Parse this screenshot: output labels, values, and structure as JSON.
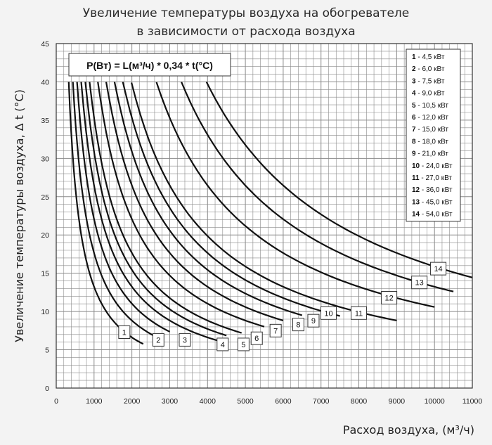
{
  "chart_data": {
    "type": "line",
    "title_lines": [
      "Увеличение температуры воздуха на обогревателе",
      "в зависимости от расхода воздуха"
    ],
    "xlabel": "Расход воздуха, (м³/ч)",
    "ylabel": "Увеличение температуры воздуха, Δ t (°C)",
    "xlim": [
      0,
      11000
    ],
    "ylim": [
      0,
      45
    ],
    "x_ticks": [
      0,
      1000,
      2000,
      3000,
      4000,
      5000,
      6000,
      7000,
      8000,
      9000,
      10000,
      11000
    ],
    "y_ticks": [
      0,
      5,
      10,
      15,
      20,
      25,
      30,
      35,
      40,
      45
    ],
    "grid": true,
    "formula": "P(Вт) = L(м³/ч) * 0,34 * t(°C)",
    "legend_position": "top-right",
    "colors": {
      "background": "#f3f3f3",
      "grid": "#8a8a8a",
      "curve": "#111111",
      "box": "#ffffff"
    },
    "series": [
      {
        "name": "1",
        "power_w": 4500,
        "legend": "- 4,5 кВт",
        "x_range": [
          330,
          2300
        ],
        "label_at": [
          1800,
          7.3
        ]
      },
      {
        "name": "2",
        "power_w": 6000,
        "legend": "- 6,0 кВт",
        "x_range": [
          440,
          2700
        ],
        "label_at": [
          2700,
          6.3
        ]
      },
      {
        "name": "3",
        "power_w": 7500,
        "legend": "- 7,5 кВт",
        "x_range": [
          550,
          3000
        ],
        "label_at": [
          3400,
          6.3
        ]
      },
      {
        "name": "4",
        "power_w": 9000,
        "legend": "- 9,0 кВт",
        "x_range": [
          660,
          4400
        ],
        "label_at": [
          4400,
          5.7
        ]
      },
      {
        "name": "5",
        "power_w": 10500,
        "legend": "- 10,5 кВт",
        "x_range": [
          770,
          4500
        ],
        "label_at": [
          4950,
          5.7
        ]
      },
      {
        "name": "6",
        "power_w": 12000,
        "legend": "- 12,0 кВт",
        "x_range": [
          880,
          4900
        ],
        "label_at": [
          5300,
          6.5
        ]
      },
      {
        "name": "7",
        "power_w": 15000,
        "legend": "- 15,0 кВт",
        "x_range": [
          1100,
          5500
        ],
        "label_at": [
          5800,
          7.5
        ]
      },
      {
        "name": "8",
        "power_w": 18000,
        "legend": "- 18,0 кВт",
        "x_range": [
          1320,
          6000
        ],
        "label_at": [
          6400,
          8.3
        ]
      },
      {
        "name": "9",
        "power_w": 21000,
        "legend": "- 21,0 кВт",
        "x_range": [
          1540,
          6500
        ],
        "label_at": [
          6800,
          8.8
        ]
      },
      {
        "name": "10",
        "power_w": 24000,
        "legend": "- 24,0 кВт",
        "x_range": [
          1760,
          7500
        ],
        "label_at": [
          7200,
          9.8
        ]
      },
      {
        "name": "11",
        "power_w": 27000,
        "legend": "- 27,0 кВт",
        "x_range": [
          1990,
          9000
        ],
        "label_at": [
          8000,
          9.8
        ]
      },
      {
        "name": "12",
        "power_w": 36000,
        "legend": "- 36,0 кВт",
        "x_range": [
          2650,
          10000
        ],
        "label_at": [
          8800,
          11.8
        ]
      },
      {
        "name": "13",
        "power_w": 45000,
        "legend": "- 45,0 кВт",
        "x_range": [
          3310,
          10500
        ],
        "label_at": [
          9600,
          13.8
        ]
      },
      {
        "name": "14",
        "power_w": 54000,
        "legend": "- 54,0 кВт",
        "x_range": [
          3970,
          11000
        ],
        "label_at": [
          10100,
          15.6
        ]
      }
    ]
  }
}
